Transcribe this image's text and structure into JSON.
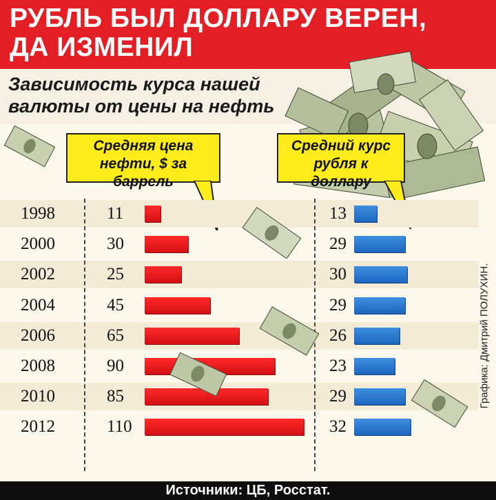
{
  "header": {
    "title_line1": "РУБЛЬ БЫЛ ДОЛЛАРУ ВЕРЕН,",
    "title_line2": "ДА ИЗМЕНИЛ"
  },
  "subtitle": {
    "line1": "Зависимость курса нашей",
    "line2": "валюты от цены на нефть"
  },
  "callouts": {
    "oil_line1": "Средняя цена",
    "oil_line2": "нефти, $ за баррель",
    "usd_line1": "Средний курс",
    "usd_line2": "рубля к доллару"
  },
  "credit": "Графика: Дмитрий ПОЛУХИН.",
  "footer": "Источники: ЦБ, Росстат.",
  "colors": {
    "header_red": "#e31e24",
    "oil_bar": "#e8141b",
    "usd_bar": "#2a78d1",
    "callout_yellow": "#ffec1a",
    "footer_black": "#0d0d0d"
  },
  "chart_data": {
    "type": "bar",
    "categories": [
      "1998",
      "2000",
      "2002",
      "2004",
      "2006",
      "2008",
      "2010",
      "2012"
    ],
    "series": [
      {
        "name": "Средняя цена нефти, $ за баррель",
        "values": [
          11,
          30,
          25,
          45,
          65,
          90,
          85,
          110
        ]
      },
      {
        "name": "Средний курс рубля к доллару",
        "values": [
          13,
          29,
          30,
          29,
          26,
          23,
          29,
          32
        ]
      }
    ],
    "oil_labels": [
      "11",
      "30",
      "25",
      "45",
      "65",
      "90",
      "85",
      "110"
    ],
    "usd_labels": [
      "13",
      "29",
      "30",
      "29",
      "26",
      "23",
      "29",
      "32"
    ],
    "orientation": "horizontal",
    "grid": false
  }
}
